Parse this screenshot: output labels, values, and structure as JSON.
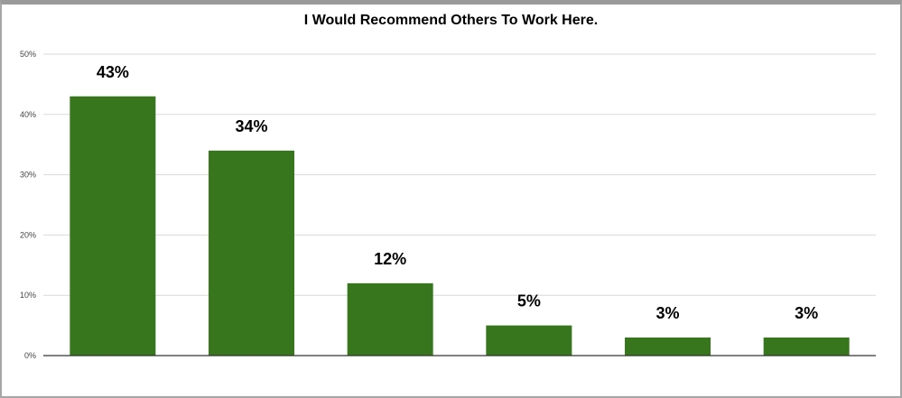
{
  "chart_data": {
    "type": "bar",
    "title": "I Would Recommend Others To Work Here.",
    "categories": [
      "",
      "",
      "",
      "",
      "",
      ""
    ],
    "values": [
      43,
      34,
      12,
      5,
      3,
      3
    ],
    "data_labels": [
      "43%",
      "34%",
      "12%",
      "5%",
      "3%",
      "3%"
    ],
    "ylim": [
      0,
      50
    ],
    "yticks": [
      0,
      10,
      20,
      30,
      40,
      50
    ],
    "ytick_labels": [
      "0%",
      "10%",
      "20%",
      "30%",
      "40%",
      "50%"
    ],
    "grid": true,
    "legend": "none",
    "colors": {
      "bar": "#38761d",
      "grid": "#d9d9d9",
      "axis": "#333333"
    }
  }
}
